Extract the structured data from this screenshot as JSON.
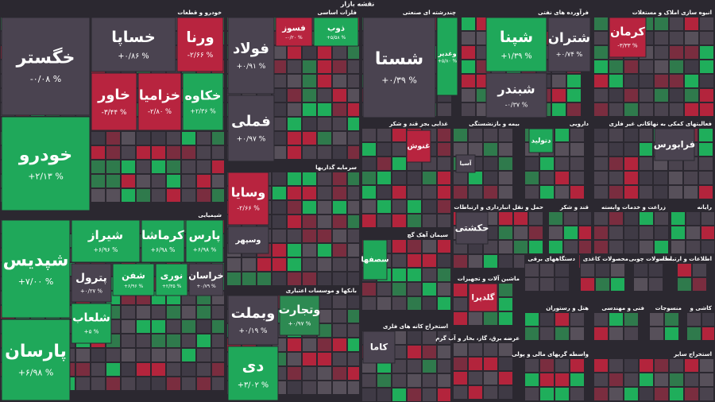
{
  "header": {
    "title": "نقشه بازار"
  },
  "sectors": [
    {
      "title": "خودرو و قطعات",
      "tiles": [
        {
          "name": "خگستر",
          "change": "-۰/۰۸ %",
          "color": "#4a4350"
        },
        {
          "name": "خودرو",
          "change": "+۲/۱۳ %",
          "color": "#1fa85a"
        },
        {
          "name": "خساپا",
          "change": "+۰/۸۶ %",
          "color": "#4a4350"
        },
        {
          "name": "ورنا",
          "change": "-۲/۶۶ %",
          "color": "#b8243f"
        },
        {
          "name": "خاور",
          "change": "-۳/۴۴ %",
          "color": "#b8243f"
        },
        {
          "name": "خزامیا",
          "change": "-۲/۸۰ %",
          "color": "#b8243f"
        },
        {
          "name": "خکاوه",
          "change": "+۲/۳۶ %",
          "color": "#1fa85a"
        }
      ]
    },
    {
      "title": "شیمیایی",
      "tiles": [
        {
          "name": "شپدیس",
          "change": "+۷/۰۰ %",
          "color": "#1fa85a"
        },
        {
          "name": "پارسان",
          "change": "+۶/۹۸ %",
          "color": "#1fa85a"
        },
        {
          "name": "شیراز",
          "change": "+۶/۹۶ %",
          "color": "#1fa85a"
        },
        {
          "name": "کرماشا",
          "change": "+۶/۹۸ %",
          "color": "#1fa85a"
        },
        {
          "name": "پارس",
          "change": "+۶/۹۸ %",
          "color": "#1fa85a"
        },
        {
          "name": "پترول",
          "change": "+۰/۲۷ %",
          "color": "#4a4350"
        },
        {
          "name": "شفن",
          "change": "+۶/۹۶ %",
          "color": "#1fa85a"
        },
        {
          "name": "نوری",
          "change": "+۲/۳۵ %",
          "color": "#1fa85a"
        },
        {
          "name": "خراسان",
          "change": "+۰/۷۹ %",
          "color": "#4a4350"
        },
        {
          "name": "شلعاب",
          "change": "+۵ %",
          "color": "#1fa85a"
        }
      ]
    },
    {
      "title": "فلزات اساسی",
      "tiles": [
        {
          "name": "فولاد",
          "change": "+۰/۹۱ %",
          "color": "#4a4350"
        },
        {
          "name": "فملی",
          "change": "+۰/۹۷ %",
          "color": "#4a4350"
        },
        {
          "name": "فسوز",
          "change": "-۰/۲۰ %",
          "color": "#b8243f"
        },
        {
          "name": "ذوب",
          "change": "+۵/۵۸ %",
          "color": "#1fa85a"
        }
      ]
    },
    {
      "title": "سرمایه گذاریها",
      "tiles": [
        {
          "name": "وسایا",
          "change": "-۲/۶۶ %",
          "color": "#b8243f"
        },
        {
          "name": "وسپهر",
          "color": "#4a4350"
        }
      ]
    },
    {
      "title": "بانکها و موسسات اعتباری",
      "tiles": [
        {
          "name": "وبملت",
          "change": "+۰/۱۹ %",
          "color": "#4a4350"
        },
        {
          "name": "دی",
          "change": "+۳/۰۲ %",
          "color": "#1fa85a"
        },
        {
          "name": "وتجارت",
          "change": "+۰/۹۷ %",
          "color": "#2d8a52"
        }
      ]
    },
    {
      "title": "چندرشته ای صنعتی",
      "tiles": [
        {
          "name": "شستا",
          "change": "+۰/۳۹ %",
          "color": "#4a4350"
        },
        {
          "name": "وغدیر",
          "change": "+۵/۸۰ %",
          "color": "#1fa85a"
        }
      ]
    },
    {
      "title": "فرآورده های نفتی",
      "tiles": [
        {
          "name": "شپنا",
          "change": "+۱/۳۹ %",
          "color": "#1fa85a"
        },
        {
          "name": "شتران",
          "change": "+۰/۷۴ %",
          "color": "#4a4350"
        },
        {
          "name": "شبندر",
          "change": "-۰/۳۷ %",
          "color": "#4a4350"
        }
      ]
    },
    {
      "title": "انبوه سازی املاک و مستغلات",
      "tiles": [
        {
          "name": "کرمان",
          "change": "-۳/۳۳ %",
          "color": "#b8243f"
        }
      ]
    },
    {
      "title": "غذایی بجز قند و شکر",
      "tiles": [
        {
          "name": "غنوش",
          "color": "#b8243f"
        }
      ]
    },
    {
      "title": "بیمه و بازنشستگی",
      "tiles": [
        {
          "name": "آسیا",
          "color": "#4a4350"
        }
      ]
    },
    {
      "title": "دارویی",
      "tiles": [
        {
          "name": "دتولید",
          "color": "#1fa85a"
        }
      ]
    },
    {
      "title": "کانی غیر فلزی"
    },
    {
      "title": "فعالیتهای کمکی به نهاد",
      "tiles": [
        {
          "name": "فرابورس",
          "color": "#4a4350"
        }
      ]
    },
    {
      "title": "سیمان آهک گچ",
      "tiles": [
        {
          "name": "سصفها",
          "color": "#1fa85a"
        }
      ]
    },
    {
      "title": "استخراج کانه های فلزی",
      "tiles": [
        {
          "name": "کاما",
          "color": "#4a4350"
        }
      ]
    },
    {
      "title": "حمل و نقل انبارداری و ارتباطات",
      "tiles": [
        {
          "name": "حکشتی",
          "color": "#4a4350"
        }
      ]
    },
    {
      "title": "قند و شکر"
    },
    {
      "title": "زراعت و خدمات وابسته"
    },
    {
      "title": "رایانه"
    },
    {
      "title": "ماشین آلات و تجهیزات",
      "tiles": [
        {
          "name": "گلدیرا",
          "color": "#b8243f"
        }
      ]
    },
    {
      "title": "دستگاههای برقی"
    },
    {
      "title": "محصولات کاغذی"
    },
    {
      "title": "محصولات چوبی"
    },
    {
      "title": "اطلاعات و ارتباطات"
    },
    {
      "title": "هتل و رستوران"
    },
    {
      "title": "فنی و مهندسی"
    },
    {
      "title": "منسوجات"
    },
    {
      "title": "کاشی و"
    },
    {
      "title": "عرضه برق، گاز، بخار و آب گرم"
    },
    {
      "title": "واسطه گریهای مالی و پولی"
    },
    {
      "title": "استخراج سایر"
    }
  ]
}
